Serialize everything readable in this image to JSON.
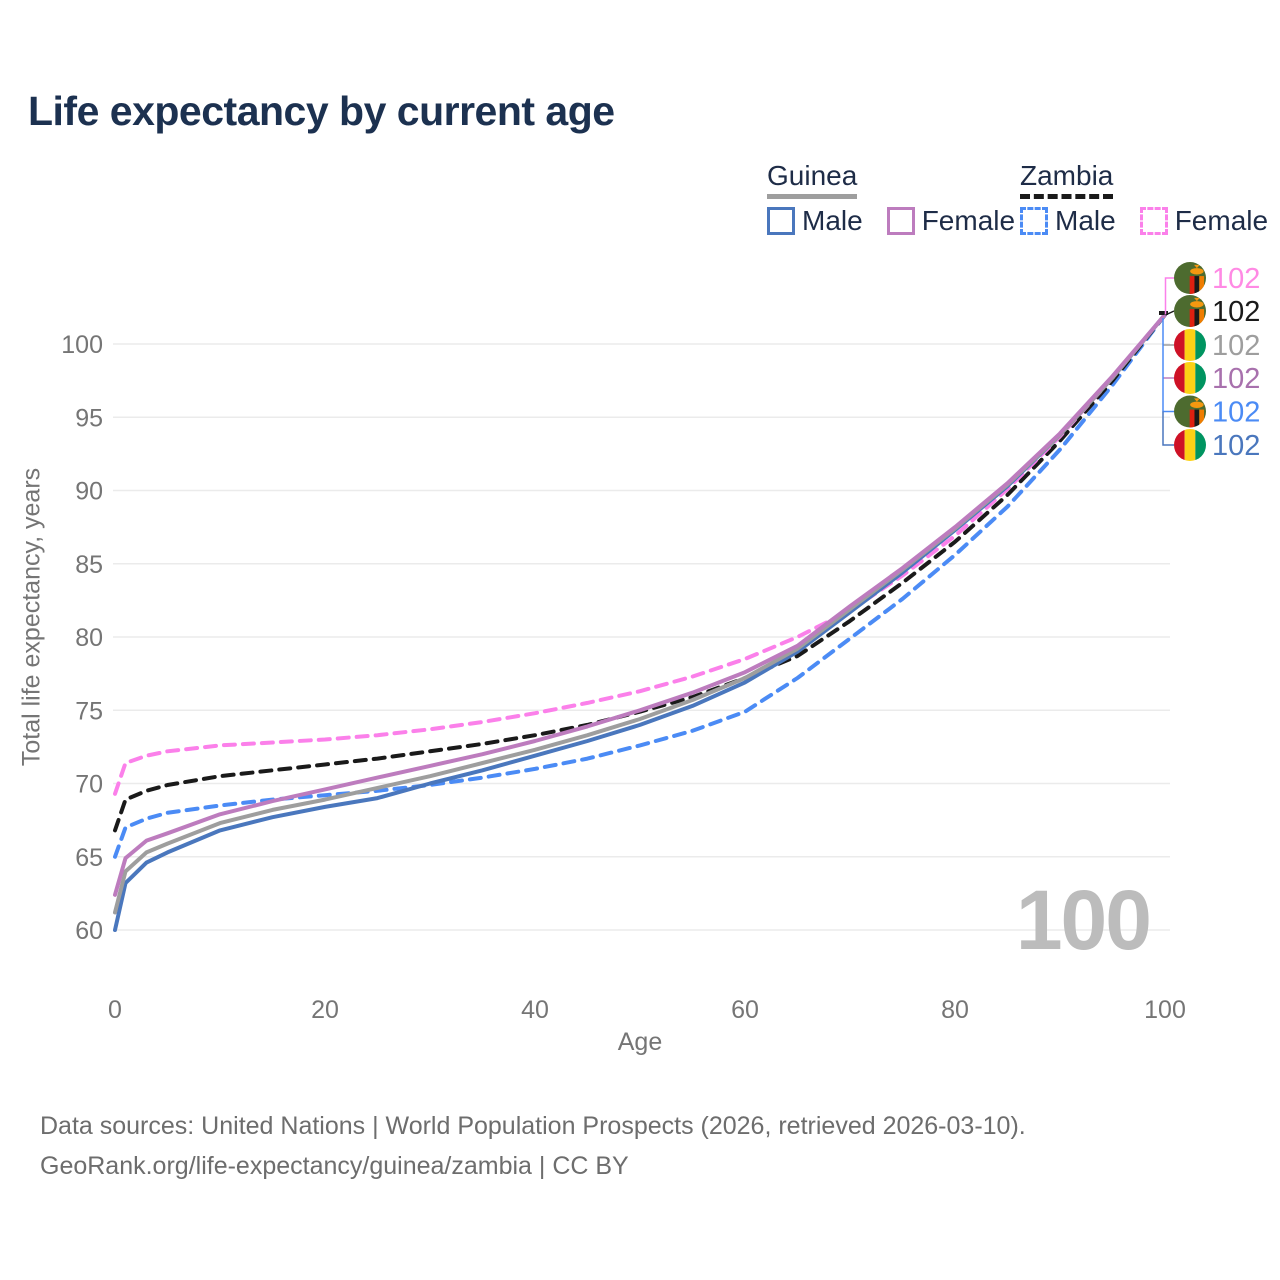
{
  "title": "Life expectancy by current age",
  "legend": {
    "groups": [
      {
        "label": "Guinea",
        "line_style": "solid",
        "underline_color": "#9e9e9e",
        "items": [
          {
            "label": "Male",
            "color": "#4a77bd",
            "dashed": false
          },
          {
            "label": "Female",
            "color": "#bd7cbe",
            "dashed": false
          }
        ]
      },
      {
        "label": "Zambia",
        "line_style": "dashed",
        "underline_color": "#1a1a1a",
        "items": [
          {
            "label": "Male",
            "color": "#4b8bf5",
            "dashed": true
          },
          {
            "label": "Female",
            "color": "#fb80ea",
            "dashed": true
          }
        ]
      }
    ]
  },
  "y_axis": {
    "label": "Total life expectancy, years",
    "ticks": [
      60,
      65,
      70,
      75,
      80,
      85,
      90,
      95,
      100
    ]
  },
  "x_axis": {
    "label": "Age",
    "ticks": [
      0,
      20,
      40,
      60,
      80,
      100
    ]
  },
  "watermark_age": "100",
  "end_labels": [
    {
      "series": "zambia_female",
      "value": "102",
      "text_color": "#ff8ae4",
      "flag": "zambia"
    },
    {
      "series": "zambia_all",
      "value": "102",
      "text_color": "#1a1a1a",
      "flag": "zambia"
    },
    {
      "series": "guinea_all",
      "value": "102",
      "text_color": "#9e9e9e",
      "flag": "guinea"
    },
    {
      "series": "guinea_female",
      "value": "102",
      "text_color": "#a871ad",
      "flag": "guinea"
    },
    {
      "series": "zambia_male",
      "value": "102",
      "text_color": "#4b8bf5",
      "flag": "zambia"
    },
    {
      "series": "guinea_male",
      "value": "102",
      "text_color": "#4a77bd",
      "flag": "guinea"
    }
  ],
  "footer": {
    "line1": "Data sources: United Nations | World Population Prospects (2026, retrieved 2026-03-10).",
    "line2": "GeoRank.org/life-expectancy/guinea/zambia | CC BY"
  },
  "chart_data": {
    "type": "line",
    "title": "Life expectancy by current age",
    "xlabel": "Age",
    "ylabel": "Total life expectancy, years",
    "xlim": [
      0,
      100
    ],
    "ylim": [
      58.5,
      103
    ],
    "x_ticks": [
      0,
      20,
      40,
      60,
      80,
      100
    ],
    "y_ticks": [
      60,
      65,
      70,
      75,
      80,
      85,
      90,
      95,
      100
    ],
    "grid": "horizontal",
    "legend_position": "top-right",
    "x": [
      0,
      1,
      3,
      5,
      10,
      15,
      20,
      25,
      30,
      35,
      40,
      45,
      50,
      55,
      60,
      65,
      70,
      75,
      80,
      85,
      90,
      95,
      100
    ],
    "series": [
      {
        "id": "zambia_male",
        "name": "Zambia Male",
        "country": "Zambia",
        "sex": "male",
        "color": "#4b8bf5",
        "dashed": true,
        "values": [
          65.0,
          67.0,
          67.6,
          68.0,
          68.5,
          68.9,
          69.2,
          69.5,
          69.9,
          70.4,
          71.0,
          71.7,
          72.6,
          73.6,
          74.9,
          77.2,
          79.9,
          82.6,
          85.6,
          88.9,
          92.8,
          97.2,
          102
        ]
      },
      {
        "id": "zambia_all",
        "name": "Zambia (both sexes)",
        "country": "Zambia",
        "sex": "all",
        "color": "#1a1a1a",
        "dashed": true,
        "values": [
          66.8,
          68.9,
          69.5,
          69.9,
          70.5,
          70.9,
          71.3,
          71.7,
          72.2,
          72.7,
          73.3,
          74.0,
          74.9,
          75.9,
          77.2,
          78.7,
          81.1,
          83.7,
          86.5,
          89.7,
          93.4,
          97.5,
          102
        ]
      },
      {
        "id": "zambia_female",
        "name": "Zambia Female",
        "country": "Zambia",
        "sex": "female",
        "color": "#fb80ea",
        "dashed": true,
        "values": [
          69.3,
          71.4,
          71.9,
          72.2,
          72.6,
          72.8,
          73.0,
          73.3,
          73.7,
          74.2,
          74.8,
          75.5,
          76.3,
          77.3,
          78.5,
          80.0,
          81.8,
          84.2,
          86.9,
          90.1,
          93.7,
          97.7,
          102
        ]
      },
      {
        "id": "guinea_male",
        "name": "Guinea Male",
        "country": "Guinea",
        "sex": "male",
        "color": "#4a77bd",
        "dashed": false,
        "values": [
          60.0,
          63.2,
          64.6,
          65.3,
          66.8,
          67.7,
          68.4,
          69.0,
          70.0,
          70.9,
          71.9,
          72.9,
          74.0,
          75.3,
          76.9,
          79.0,
          81.7,
          84.4,
          87.3,
          90.3,
          93.8,
          97.7,
          102
        ]
      },
      {
        "id": "guinea_all",
        "name": "Guinea (both sexes)",
        "country": "Guinea",
        "sex": "all",
        "color": "#9e9e9e",
        "dashed": false,
        "values": [
          61.2,
          64.0,
          65.3,
          65.9,
          67.3,
          68.2,
          68.9,
          69.7,
          70.5,
          71.4,
          72.3,
          73.3,
          74.4,
          75.7,
          77.2,
          79.2,
          81.9,
          84.6,
          87.4,
          90.4,
          93.8,
          97.7,
          102
        ]
      },
      {
        "id": "guinea_female",
        "name": "Guinea Female",
        "country": "Guinea",
        "sex": "female",
        "color": "#bd7cbe",
        "dashed": false,
        "values": [
          62.4,
          64.9,
          66.1,
          66.6,
          67.9,
          68.8,
          69.6,
          70.4,
          71.2,
          72.0,
          72.9,
          73.9,
          75.0,
          76.2,
          77.6,
          79.4,
          82.1,
          84.7,
          87.5,
          90.5,
          93.9,
          97.8,
          102
        ]
      }
    ]
  }
}
